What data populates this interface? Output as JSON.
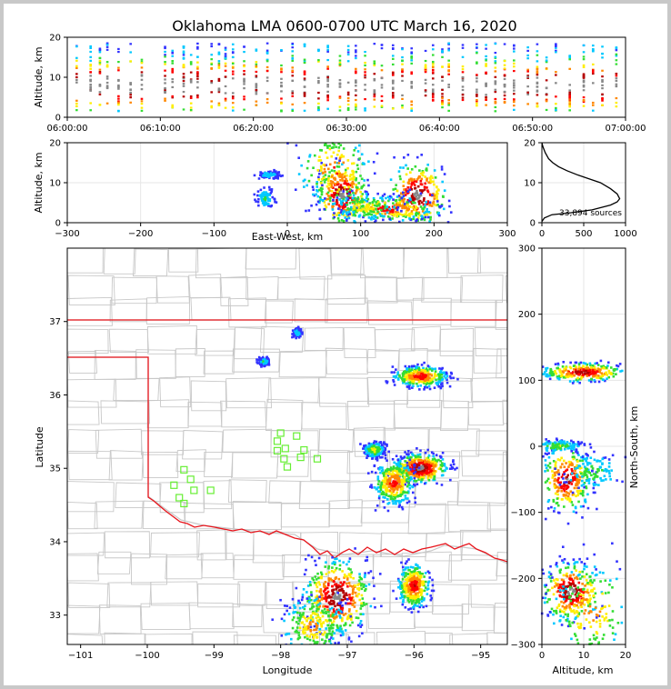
{
  "figure": {
    "title": "Oklahoma LMA 0600-0700 UTC March 16, 2020",
    "colors": {
      "border": "#888888",
      "state_line": "#e8141b",
      "county_line": "#c8c8c8",
      "station": "#66ee33",
      "density_ramp": [
        "#3333ff",
        "#00c8ff",
        "#33dd33",
        "#ffee00",
        "#ff8800",
        "#ff0000",
        "#b40000",
        "#888888"
      ]
    }
  },
  "chart_data": [
    {
      "id": "time_altitude",
      "type": "scatter",
      "title": "",
      "xlabel": "",
      "ylabel": "Altitude, km",
      "xlim": [
        "06:00:00",
        "07:00:00"
      ],
      "xticks": [
        "06:00:00",
        "06:10:00",
        "06:20:00",
        "06:30:00",
        "06:40:00",
        "06:50:00",
        "07:00:00"
      ],
      "ylim": [
        0,
        20
      ],
      "yticks": [
        "0",
        "10",
        "20"
      ],
      "columns_min_after_0600": [
        1.0,
        2.5,
        3.5,
        4.3,
        5.5,
        6.8,
        8.0,
        10.5,
        11.3,
        12.5,
        13.3,
        14.0,
        15.5,
        16.3,
        17.0,
        17.8,
        19.0,
        20.3,
        21.5,
        23.0,
        24.2,
        25.5,
        27.0,
        28.0,
        29.3,
        30.2,
        31.0,
        32.0,
        33.0,
        33.8,
        35.0,
        36.0,
        37.0,
        38.5,
        39.3,
        40.3,
        41.0,
        42.5,
        44.0,
        45.0,
        46.0,
        47.0,
        48.0,
        49.5,
        50.5,
        51.5,
        52.5,
        54.0,
        55.5,
        56.5,
        57.5,
        59.0
      ]
    },
    {
      "id": "east_west_altitude",
      "type": "heatmap",
      "xlabel": "East-West, km",
      "ylabel": "Altitude, km",
      "xlim": [
        -300,
        300
      ],
      "xticks": [
        "−300",
        "−200",
        "−100",
        "0",
        "100",
        "200",
        "300"
      ],
      "ylim": [
        0,
        20
      ],
      "yticks": [
        "0",
        "10",
        "20"
      ],
      "cells": [
        {
          "x": 75,
          "z": 7,
          "intensity": 1.0,
          "sx": 18,
          "sz": 4.0
        },
        {
          "x": 65,
          "z": 13,
          "intensity": 0.7,
          "sx": 25,
          "sz": 5.0
        },
        {
          "x": 178,
          "z": 7,
          "intensity": 1.0,
          "sx": 20,
          "sz": 4.0
        },
        {
          "x": 140,
          "z": 3.5,
          "intensity": 0.8,
          "sx": 30,
          "sz": 1.5
        },
        {
          "x": 105,
          "z": 4,
          "intensity": 0.5,
          "sx": 25,
          "sz": 2.0
        },
        {
          "x": -25,
          "z": 12,
          "intensity": 0.25,
          "sx": 8,
          "sz": 0.5
        },
        {
          "x": -30,
          "z": 6,
          "intensity": 0.3,
          "sx": 6,
          "sz": 1.2
        }
      ]
    },
    {
      "id": "altitude_histogram",
      "type": "line",
      "xlim": [
        0,
        1000
      ],
      "xticks": [
        "0",
        "500",
        "1000"
      ],
      "ylim": [
        0,
        20
      ],
      "yticks": [
        "0",
        "10",
        "20"
      ],
      "annotation": "33,894 sources",
      "x": [
        0,
        12,
        40,
        80,
        130,
        200,
        300,
        420,
        560,
        700,
        820,
        900,
        930,
        900,
        820,
        600,
        350,
        120,
        30,
        0
      ],
      "y": [
        20,
        19,
        17.5,
        16,
        15,
        14,
        13,
        12,
        11,
        10,
        8.5,
        7.2,
        6.0,
        5.2,
        4.4,
        3.2,
        2.5,
        2.0,
        1.2,
        0.3
      ]
    },
    {
      "id": "plan_view",
      "type": "heatmap",
      "xlabel": "Longitude",
      "ylabel": "Latitude",
      "xlim": [
        -101.2,
        -94.6
      ],
      "xticks": [
        "−101",
        "−100",
        "−99",
        "−98",
        "−97",
        "−96",
        "−95"
      ],
      "ylim": [
        32.6,
        38.0
      ],
      "yticks": [
        "33",
        "34",
        "35",
        "36",
        "37"
      ],
      "cells": [
        {
          "lon": -97.15,
          "lat": 33.25,
          "intensity": 1.0,
          "sx": 0.25,
          "sy": 0.25
        },
        {
          "lon": -97.5,
          "lat": 32.85,
          "intensity": 0.6,
          "sx": 0.25,
          "sy": 0.2
        },
        {
          "lon": -96.0,
          "lat": 33.4,
          "intensity": 0.8,
          "sx": 0.12,
          "sy": 0.15
        },
        {
          "lon": -95.9,
          "lat": 35.0,
          "intensity": 1.0,
          "sx": 0.2,
          "sy": 0.1
        },
        {
          "lon": -96.3,
          "lat": 34.8,
          "intensity": 0.75,
          "sx": 0.15,
          "sy": 0.15
        },
        {
          "lon": -95.9,
          "lat": 36.25,
          "intensity": 0.8,
          "sx": 0.2,
          "sy": 0.07
        },
        {
          "lon": -96.6,
          "lat": 35.25,
          "intensity": 0.5,
          "sx": 0.08,
          "sy": 0.05
        },
        {
          "lon": -97.75,
          "lat": 36.85,
          "intensity": 0.3,
          "sx": 0.03,
          "sy": 0.03
        },
        {
          "lon": -98.25,
          "lat": 36.45,
          "intensity": 0.3,
          "sx": 0.04,
          "sy": 0.03
        }
      ],
      "stations": [
        {
          "lon": -98.0,
          "lat": 35.48
        },
        {
          "lon": -97.76,
          "lat": 35.44
        },
        {
          "lon": -98.05,
          "lat": 35.37
        },
        {
          "lon": -97.93,
          "lat": 35.27
        },
        {
          "lon": -97.65,
          "lat": 35.25
        },
        {
          "lon": -98.05,
          "lat": 35.24
        },
        {
          "lon": -97.7,
          "lat": 35.15
        },
        {
          "lon": -97.95,
          "lat": 35.13
        },
        {
          "lon": -97.45,
          "lat": 35.13
        },
        {
          "lon": -97.9,
          "lat": 35.02
        },
        {
          "lon": -99.45,
          "lat": 34.98
        },
        {
          "lon": -99.35,
          "lat": 34.85
        },
        {
          "lon": -99.6,
          "lat": 34.77
        },
        {
          "lon": -99.3,
          "lat": 34.7
        },
        {
          "lon": -99.05,
          "lat": 34.7
        },
        {
          "lon": -99.52,
          "lat": 34.6
        },
        {
          "lon": -99.45,
          "lat": 34.52
        }
      ]
    },
    {
      "id": "north_south_altitude",
      "type": "heatmap",
      "xlabel": "Altitude, km",
      "ylabel": "North-South, km",
      "xlim": [
        0,
        20
      ],
      "xticks": [
        "0",
        "10",
        "20"
      ],
      "ylim": [
        -300,
        300
      ],
      "yticks": [
        "−300",
        "−200",
        "−100",
        "0",
        "100",
        "200",
        "300"
      ],
      "cells": [
        {
          "z": 7,
          "ns": -220,
          "intensity": 1.0,
          "sz": 3.5,
          "sns": 22
        },
        {
          "z": 12,
          "ns": -250,
          "intensity": 0.6,
          "sz": 5.0,
          "sns": 40
        },
        {
          "z": 6,
          "ns": -50,
          "intensity": 0.9,
          "sz": 3.0,
          "sns": 25
        },
        {
          "z": 12,
          "ns": -40,
          "intensity": 0.35,
          "sz": 4.0,
          "sns": 15
        },
        {
          "z": 10,
          "ns": 112,
          "intensity": 0.9,
          "sz": 5.0,
          "sns": 7
        },
        {
          "z": 4,
          "ns": 0,
          "intensity": 0.4,
          "sz": 3.0,
          "sns": 5
        }
      ]
    }
  ]
}
